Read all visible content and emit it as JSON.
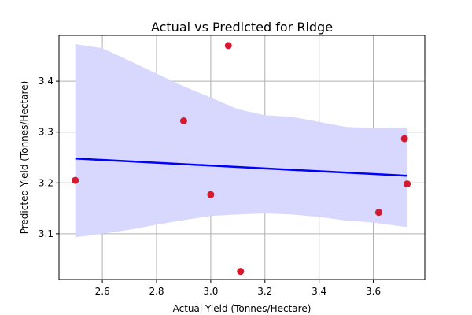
{
  "chart_data": {
    "type": "scatter",
    "title": "Actual vs Predicted for Ridge",
    "xlabel": "Actual Yield (Tonnes/Hectare)",
    "ylabel": "Predicted Yield (Tonnes/Hectare)",
    "xlim": [
      2.44,
      3.79
    ],
    "ylim": [
      3.01,
      3.49
    ],
    "xticks": [
      2.6,
      2.8,
      3.0,
      3.2,
      3.4,
      3.6
    ],
    "xtick_labels": [
      "2.6",
      "2.8",
      "3.0",
      "3.2",
      "3.4",
      "3.6"
    ],
    "yticks": [
      3.1,
      3.2,
      3.3,
      3.4
    ],
    "ytick_labels": [
      "3.1",
      "3.2",
      "3.3",
      "3.4"
    ],
    "grid": true,
    "colors": {
      "points": "#d61a2e",
      "line": "#0000ff",
      "band": "#d8d8ff"
    },
    "points": [
      {
        "x": 2.5,
        "y": 3.205
      },
      {
        "x": 2.9,
        "y": 3.322
      },
      {
        "x": 3.0,
        "y": 3.177
      },
      {
        "x": 3.065,
        "y": 3.47
      },
      {
        "x": 3.11,
        "y": 3.026
      },
      {
        "x": 3.62,
        "y": 3.142
      },
      {
        "x": 3.715,
        "y": 3.287
      },
      {
        "x": 3.725,
        "y": 3.198
      }
    ],
    "regression_line": [
      {
        "x": 2.5,
        "y": 3.248
      },
      {
        "x": 3.725,
        "y": 3.214
      }
    ],
    "confidence_band": {
      "x": [
        2.5,
        2.6,
        2.7,
        2.8,
        2.9,
        3.0,
        3.1,
        3.2,
        3.3,
        3.4,
        3.5,
        3.6,
        3.7,
        3.725
      ],
      "upper": [
        3.473,
        3.465,
        3.44,
        3.415,
        3.39,
        3.368,
        3.345,
        3.333,
        3.33,
        3.32,
        3.31,
        3.308,
        3.308,
        3.307
      ],
      "lower": [
        3.093,
        3.1,
        3.108,
        3.118,
        3.127,
        3.135,
        3.138,
        3.14,
        3.138,
        3.133,
        3.126,
        3.122,
        3.115,
        3.113
      ]
    }
  }
}
